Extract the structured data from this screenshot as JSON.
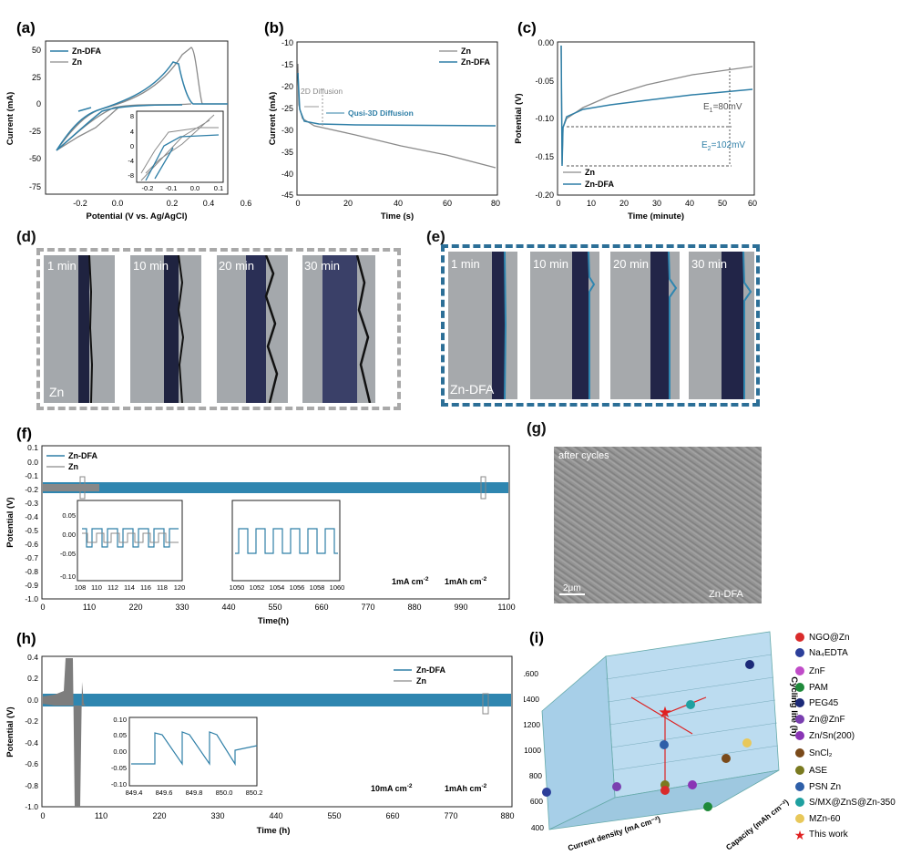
{
  "colors": {
    "dfa": "#2f7fa7",
    "zn": "#8a8a8a",
    "dfa_fill": "#2f86b0",
    "zn_fill": "#777777"
  },
  "panel_a": {
    "label": "(a)",
    "xlabel": "Potential (V vs. Ag/AgCl)",
    "ylabel": "Current (mA)",
    "xticks": [
      "-0.2",
      "0.0",
      "0.2",
      "0.4",
      "0.6"
    ],
    "yticks": [
      "50",
      "25",
      "0",
      "-25",
      "-50",
      "-75"
    ],
    "legend": [
      "Zn-DFA",
      "Zn"
    ],
    "inset_xticks": [
      "-0.2",
      "-0.1",
      "0.0",
      "0.1"
    ],
    "inset_yticks": [
      "8",
      "4",
      "0",
      "-4",
      "-8"
    ]
  },
  "panel_b": {
    "label": "(b)",
    "xlabel": "Time (s)",
    "ylabel": "Current (mA)",
    "xticks": [
      "0",
      "20",
      "40",
      "60",
      "80"
    ],
    "yticks": [
      "-10",
      "-15",
      "-20",
      "-25",
      "-30",
      "-35",
      "-40",
      "-45"
    ],
    "legend": [
      "Zn",
      "Zn-DFA"
    ],
    "annot_2d": "2D Diffusion",
    "annot_3d": "Qusi-3D Diffusion"
  },
  "panel_c": {
    "label": "(c)",
    "xlabel": "Time (minute)",
    "ylabel": "Potential (V)",
    "xticks": [
      "0",
      "10",
      "20",
      "30",
      "40",
      "50",
      "60"
    ],
    "yticks": [
      "0.00",
      "-0.05",
      "-0.10",
      "-0.15",
      "-0.20"
    ],
    "legend": [
      "Zn",
      "Zn-DFA"
    ],
    "e1_main": "E",
    "e1_sub": "1",
    "e1_val": "=80mV",
    "e2_main": "E",
    "e2_sub": "2",
    "e2_val": "=102mV"
  },
  "panel_d": {
    "label": "(d)",
    "frames": [
      "1 min",
      "10 min",
      "20 min",
      "30 min"
    ],
    "tag": "Zn"
  },
  "panel_e": {
    "label": "(e)",
    "frames": [
      "1 min",
      "10 min",
      "20 min",
      "30 min"
    ],
    "tag": "Zn-DFA"
  },
  "panel_f": {
    "label": "(f)",
    "xlabel": "Time(h)",
    "ylabel": "Potential (V)",
    "xticks": [
      "0",
      "110",
      "220",
      "330",
      "440",
      "550",
      "660",
      "770",
      "880",
      "990",
      "1100"
    ],
    "yticks": [
      "0.1",
      "0.0",
      "-0.1",
      "-0.2",
      "-0.3",
      "-0.4",
      "-0.5",
      "-0.6",
      "-0.7",
      "-0.8",
      "-0.9",
      "-1.0"
    ],
    "legend": [
      "Zn-DFA",
      "Zn"
    ],
    "inset1_xticks": [
      "108",
      "110",
      "112",
      "114",
      "116",
      "118",
      "120"
    ],
    "inset2_xticks": [
      "1050",
      "1052",
      "1054",
      "1056",
      "1058",
      "1060"
    ],
    "inset_yticks": [
      "0.05",
      "0.00",
      "-0.05",
      "-0.10"
    ],
    "cond1": "1mA cm",
    "cond1_sup": "-2",
    "cond2": "1mAh cm",
    "cond2_sup": "-2"
  },
  "panel_g": {
    "label": "(g)",
    "top": "after cycles",
    "scale": "2μm",
    "bottom": "Zn-DFA"
  },
  "panel_h": {
    "label": "(h)",
    "xlabel": "Time (h)",
    "ylabel": "Potential (V)",
    "xticks": [
      "0",
      "110",
      "220",
      "330",
      "440",
      "550",
      "660",
      "770",
      "880"
    ],
    "yticks": [
      "0.4",
      "0.2",
      "0.0",
      "-0.2",
      "-0.4",
      "-0.6",
      "-0.8",
      "-1.0"
    ],
    "legend": [
      "Zn-DFA",
      "Zn"
    ],
    "inset_xticks": [
      "849.4",
      "849.6",
      "849.8",
      "850.0",
      "850.2"
    ],
    "inset_yticks": [
      "0.10",
      "0.05",
      "0.00",
      "-0.05",
      "-0.10"
    ],
    "cond1": "10mA cm",
    "cond1_sup": "-2",
    "cond2": "1mAh cm",
    "cond2_sup": "-2"
  },
  "panel_i": {
    "label": "(i)",
    "zlabel": "Cycling life (h)",
    "xlabel": "Current density (mA cm⁻²)",
    "ylabel": "Capacity (mAh cm⁻²)",
    "zticks": [
      "400",
      "600",
      "800",
      "1000",
      "1200",
      "1400",
      "1600"
    ],
    "legend": [
      {
        "name": "NGO@Zn",
        "color": "#d92b2b"
      },
      {
        "name": "Na₄EDTA",
        "color": "#2c3f9a"
      },
      {
        "name": "ZnF",
        "color": "#c04cc8"
      },
      {
        "name": "PAM",
        "color": "#1f8a3a"
      },
      {
        "name": "PEG45",
        "color": "#1c2a78"
      },
      {
        "name": "Zn@ZnF",
        "color": "#7a3fb0"
      },
      {
        "name": "Zn/Sn(200)",
        "color": "#8a35b5"
      },
      {
        "name": "SnCl₂",
        "color": "#7a4a1a"
      },
      {
        "name": "ASE",
        "color": "#7a7a20"
      },
      {
        "name": "PSN Zn",
        "color": "#2e5fa8"
      },
      {
        "name": "S/MX@ZnS@Zn-350",
        "color": "#1fa0a0"
      },
      {
        "name": "MZn-60",
        "color": "#e8c85a"
      },
      {
        "name": "This work",
        "color": "#e02020"
      }
    ]
  }
}
